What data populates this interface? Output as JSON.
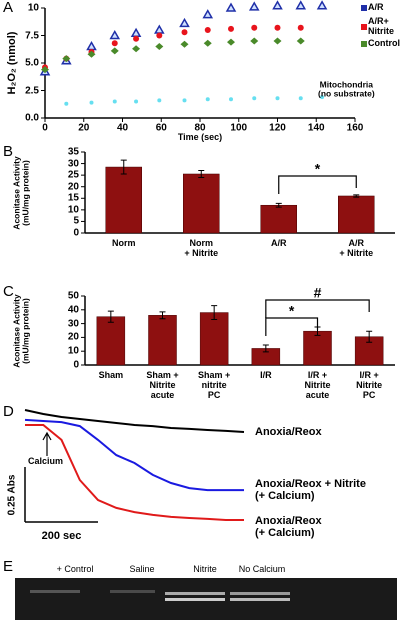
{
  "chart_data": [
    {
      "panel": "A",
      "type": "scatter",
      "xlabel": "Time (sec)",
      "ylabel": "H₂O₂ (nmol)",
      "xlim": [
        0,
        160
      ],
      "xticks": [
        0,
        20,
        40,
        60,
        80,
        100,
        120,
        140,
        160
      ],
      "ylim": [
        0,
        10
      ],
      "yticks": [
        {
          "value": 0,
          "label": "0.0"
        },
        2.5,
        {
          "value": 5,
          "label": "5.0"
        },
        7.5,
        10
      ],
      "series": [
        {
          "name": "A/R",
          "color": "#1f2fa8",
          "marker": "triangle",
          "x": [
            0,
            11,
            24,
            36,
            47,
            59,
            72,
            84,
            96,
            108,
            120,
            132,
            143
          ],
          "values": [
            4.2,
            5.2,
            6.5,
            7.5,
            7.7,
            8.0,
            8.6,
            9.4,
            10.0,
            10.1,
            10.2,
            10.2,
            10.2
          ]
        },
        {
          "name": "A/R+ Nitrite",
          "color": "#e8141c",
          "marker": "circle",
          "x": [
            0,
            11,
            24,
            36,
            47,
            59,
            72,
            84,
            96,
            108,
            120,
            132
          ],
          "values": [
            4.6,
            5.4,
            6.0,
            6.8,
            7.2,
            7.5,
            7.8,
            8.0,
            8.1,
            8.2,
            8.2,
            8.2
          ]
        },
        {
          "name": "Control",
          "color": "#4a8a2a",
          "marker": "diamond",
          "x": [
            0,
            11,
            24,
            36,
            47,
            59,
            72,
            84,
            96,
            108,
            120,
            132
          ],
          "values": [
            4.4,
            5.4,
            5.8,
            6.1,
            6.3,
            6.5,
            6.7,
            6.8,
            6.9,
            7.0,
            7.0,
            7.0
          ]
        },
        {
          "name": "Mitochondria\n(no substrate)",
          "color": "#66dff0",
          "marker": "circle",
          "x": [
            11,
            24,
            36,
            47,
            59,
            72,
            84,
            96,
            108,
            120,
            132,
            143
          ],
          "values": [
            1.3,
            1.4,
            1.5,
            1.5,
            1.6,
            1.6,
            1.7,
            1.7,
            1.8,
            1.8,
            1.8,
            1.9
          ]
        }
      ]
    },
    {
      "panel": "B",
      "type": "bar",
      "ylabel": "Aconitase Activity\n(mU/mg protein)",
      "color": "#8e1010",
      "categories": [
        "Norm",
        "Norm\n+ Nitrite",
        "A/R",
        "A/R\n+ Nitrite"
      ],
      "values": [
        28.5,
        25.5,
        12,
        16
      ],
      "errors": [
        3,
        1.5,
        0.8,
        0.5
      ],
      "ylim": [
        0,
        35
      ],
      "yticks": [
        0,
        5,
        10,
        15,
        20,
        25,
        30,
        35
      ],
      "annotations": [
        "*"
      ]
    },
    {
      "panel": "C",
      "type": "bar",
      "ylabel": "Aconitase Activity\n(mU/mg protein)",
      "color": "#8e1010",
      "categories": [
        "Sham",
        "Sham +\nNitrite\nacute",
        "Sham +\nnitrite\nPC",
        "I/R",
        "I/R +\nNitrite\nacute",
        "I/R +\nNitrite\nPC"
      ],
      "values": [
        35,
        36,
        38,
        12,
        24.5,
        20.5
      ],
      "errors": [
        4,
        2.5,
        5,
        2.5,
        3,
        4
      ],
      "ylim": [
        0,
        50
      ],
      "yticks": [
        0,
        10,
        20,
        30,
        40,
        50
      ],
      "annotations": [
        "*",
        "#"
      ]
    },
    {
      "panel": "D",
      "type": "line",
      "annotation": "Calcium",
      "scale_bars": {
        "y": {
          "value": 0.25,
          "label": "0.25 Abs"
        },
        "x": {
          "value": 200,
          "label": "200 sec"
        }
      },
      "x": [
        0,
        50,
        100,
        150,
        200,
        250,
        300,
        350,
        400,
        450,
        500,
        550,
        600
      ],
      "series": [
        {
          "name": "Anoxia/Reox",
          "color": "#000000",
          "values": [
            1.0,
            0.982,
            0.968,
            0.959,
            0.95,
            0.941,
            0.932,
            0.927,
            0.918,
            0.914,
            0.909,
            0.905,
            0.9
          ]
        },
        {
          "name": "Anoxia/Reox + Nitrite\n(+ Calcium)",
          "color": "#1a1ae0",
          "values": [
            0.955,
            0.95,
            0.945,
            0.927,
            0.864,
            0.795,
            0.759,
            0.705,
            0.668,
            0.645,
            0.636,
            0.636,
            0.636
          ]
        },
        {
          "name": "Anoxia/Reox\n(+ Calcium)",
          "color": "#e01a1a",
          "values": [
            0.932,
            0.932,
            0.864,
            0.682,
            0.591,
            0.555,
            0.536,
            0.523,
            0.514,
            0.509,
            0.505,
            0.5,
            0.5
          ]
        }
      ]
    },
    {
      "panel": "E",
      "type": "gel",
      "categories": [
        "+ Control",
        "Saline",
        "Nitrite",
        "No Calcium"
      ]
    }
  ]
}
